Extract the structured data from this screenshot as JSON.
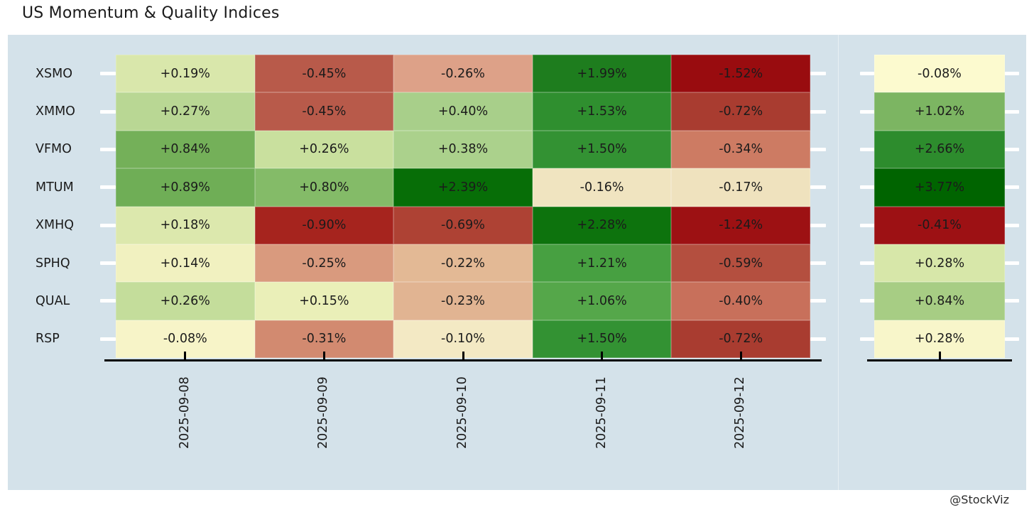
{
  "title": "US Momentum & Quality Indices",
  "credit": "@StockViz",
  "colors": {
    "panel_bg": "#d4e2ea",
    "page_bg": "#ffffff",
    "axis_line": "#000000",
    "tick_marks_y": "#ffffff",
    "text": "#1a1a1a"
  },
  "chart_data": {
    "type": "heatmap",
    "title": "US Momentum & Quality Indices",
    "colormap": "RdYlGn",
    "legend": "none",
    "grid": "off",
    "rows": [
      "XSMO",
      "XMMO",
      "VFMO",
      "MTUM",
      "XMHQ",
      "SPHQ",
      "QUAL",
      "RSP"
    ],
    "columns": [
      "2025-09-08",
      "2025-09-09",
      "2025-09-10",
      "2025-09-11",
      "2025-09-12"
    ],
    "values": [
      [
        0.19,
        -0.45,
        -0.26,
        1.99,
        -1.52
      ],
      [
        0.27,
        -0.45,
        0.4,
        1.53,
        -0.72
      ],
      [
        0.84,
        0.26,
        0.38,
        1.5,
        -0.34
      ],
      [
        0.89,
        0.8,
        2.39,
        -0.16,
        -0.17
      ],
      [
        0.18,
        -0.9,
        -0.69,
        2.28,
        -1.24
      ],
      [
        0.14,
        -0.25,
        -0.22,
        1.21,
        -0.59
      ],
      [
        0.26,
        0.15,
        -0.23,
        1.06,
        -0.4
      ],
      [
        -0.08,
        -0.31,
        -0.1,
        1.5,
        -0.72
      ]
    ],
    "labels": [
      [
        "+0.19%",
        "-0.45%",
        "-0.26%",
        "+1.99%",
        "-1.52%"
      ],
      [
        "+0.27%",
        "-0.45%",
        "+0.40%",
        "+1.53%",
        "-0.72%"
      ],
      [
        "+0.84%",
        "+0.26%",
        "+0.38%",
        "+1.50%",
        "-0.34%"
      ],
      [
        "+0.89%",
        "+0.80%",
        "+2.39%",
        "-0.16%",
        "-0.17%"
      ],
      [
        "+0.18%",
        "-0.90%",
        "-0.69%",
        "+2.28%",
        "-1.24%"
      ],
      [
        "+0.14%",
        "-0.25%",
        "-0.22%",
        "+1.21%",
        "-0.59%"
      ],
      [
        "+0.26%",
        "+0.15%",
        "-0.23%",
        "+1.06%",
        "-0.40%"
      ],
      [
        "-0.08%",
        "-0.31%",
        "-0.10%",
        "+1.50%",
        "-0.72%"
      ]
    ],
    "cell_colors": [
      [
        "#d9e7ab",
        "#b85a4a",
        "#dda188",
        "#1e7d1e",
        "#990c0f"
      ],
      [
        "#b9d794",
        "#b85a4a",
        "#a8cf8a",
        "#2f8f2f",
        "#a93c30"
      ],
      [
        "#74b059",
        "#c9e09e",
        "#abd18c",
        "#339233",
        "#cd7b63"
      ],
      [
        "#6fae56",
        "#84bb68",
        "#076e07",
        "#f0e4c0",
        "#efe2be"
      ],
      [
        "#dce8ad",
        "#a6241e",
        "#ae4234",
        "#0d730d",
        "#9d1113"
      ],
      [
        "#f1f1c0",
        "#d99a7e",
        "#e3b995",
        "#47a041",
        "#b44f3f"
      ],
      [
        "#c4dd9b",
        "#eaefb8",
        "#e1b492",
        "#55a74a",
        "#c8705b"
      ],
      [
        "#f7f4c8",
        "#d28a70",
        "#f3e9c4",
        "#339233",
        "#a93c30"
      ]
    ],
    "totals": {
      "values": [
        -0.08,
        1.02,
        2.66,
        3.77,
        -0.41,
        0.28,
        0.84,
        0.28
      ],
      "labels": [
        "-0.08%",
        "+1.02%",
        "+2.66%",
        "+3.77%",
        "-0.41%",
        "+0.28%",
        "+0.84%",
        "+0.28%"
      ],
      "colors": [
        "#fcfacf",
        "#7cb562",
        "#2d8c2d",
        "#006400",
        "#9d1114",
        "#d7e7a9",
        "#a7cd84",
        "#f8f6ca"
      ]
    }
  }
}
